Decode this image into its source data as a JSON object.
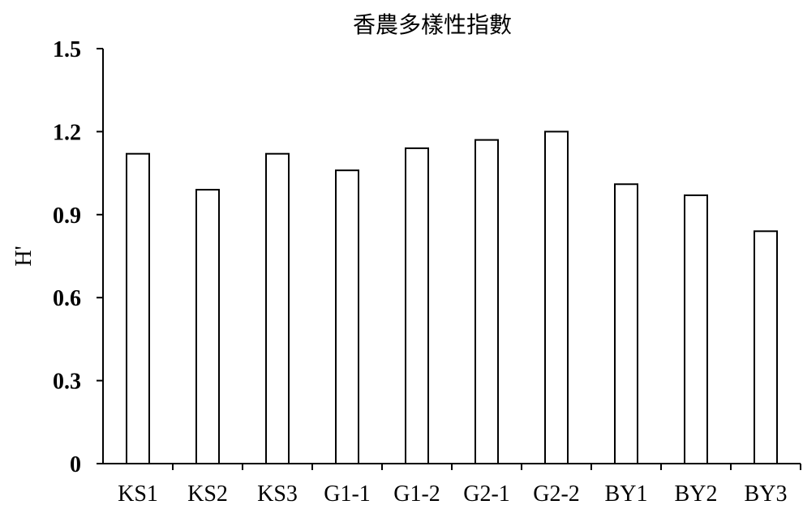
{
  "chart_data": {
    "type": "bar",
    "title": "香農多樣性指數",
    "xlabel": "",
    "ylabel": "H'",
    "ylim": [
      0,
      1.5
    ],
    "yticks": [
      "0",
      "0.3",
      "0.6",
      "0.9",
      "1.2",
      "1.5"
    ],
    "categories": [
      "KS1",
      "KS2",
      "KS3",
      "G1-1",
      "G1-2",
      "G2-1",
      "G2-2",
      "BY1",
      "BY2",
      "BY3"
    ],
    "values": [
      1.12,
      0.99,
      1.12,
      1.06,
      1.14,
      1.17,
      1.2,
      1.01,
      0.97,
      0.84
    ],
    "grid": false,
    "legend": "none",
    "bar_fill": "#ffffff",
    "bar_stroke": "#000000"
  }
}
